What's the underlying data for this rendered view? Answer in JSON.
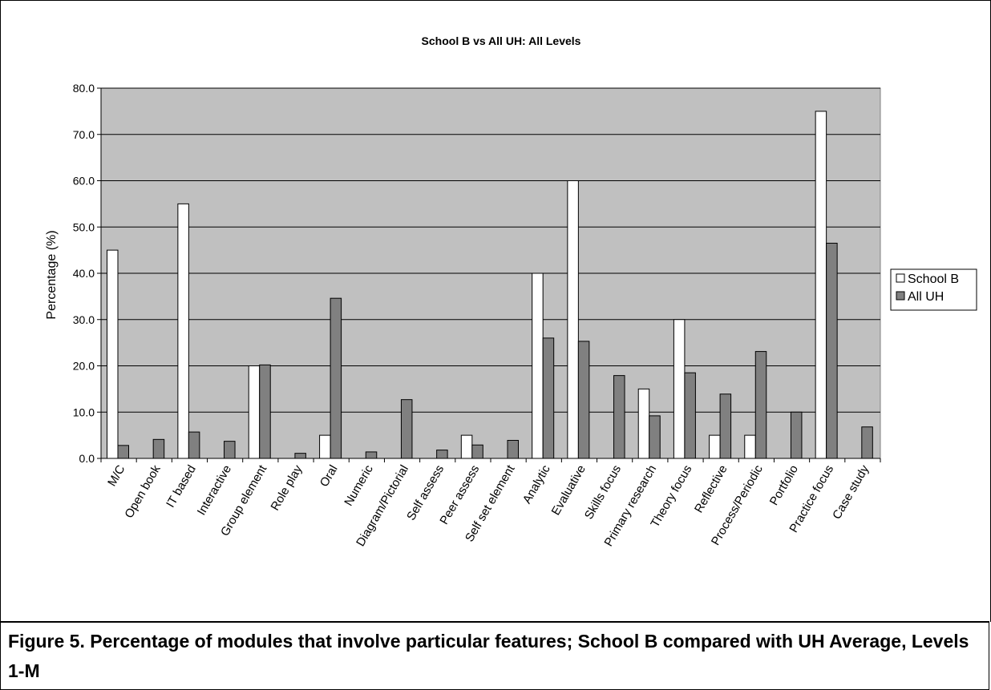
{
  "chart_data": {
    "type": "bar",
    "title": "School B vs All UH: All Levels",
    "xlabel": "",
    "ylabel": "Percentage (%)",
    "ylim": [
      0,
      80
    ],
    "yticks": [
      "0.0",
      "10.0",
      "20.0",
      "30.0",
      "40.0",
      "50.0",
      "60.0",
      "70.0",
      "80.0"
    ],
    "grid": true,
    "legend_position": "right",
    "categories": [
      "M/C",
      "Open book",
      "IT based",
      "Interactive",
      "Group element",
      "Role play",
      "Oral",
      "Numeric",
      "Diagram/Pictorial",
      "Self assess",
      "Peer assess",
      "Self set element",
      "Analytic",
      "Evaluative",
      "Skills focus",
      "Primary research",
      "Theory focus",
      "Reflective",
      "Process/Periodic",
      "Portfolio",
      "Practice focus",
      "Case study"
    ],
    "series": [
      {
        "name": "School B",
        "color": "#ffffff",
        "values": [
          45,
          0,
          55,
          0,
          20,
          0,
          5,
          0,
          0,
          0,
          5,
          0,
          40,
          60,
          0,
          15,
          30,
          5,
          5,
          0,
          75,
          0
        ]
      },
      {
        "name": "All UH",
        "color": "#808080",
        "values": [
          2.8,
          4.1,
          5.7,
          3.7,
          20.2,
          1.1,
          34.6,
          1.4,
          12.7,
          1.8,
          2.9,
          3.9,
          26.0,
          25.3,
          17.9,
          9.2,
          18.5,
          13.9,
          23.1,
          10.0,
          46.5,
          6.8
        ]
      }
    ],
    "plot_background": "#c0c0c0"
  },
  "caption": {
    "text": "Figure 5. Percentage of modules that involve particular features; School B compared with UH Average, Levels 1-M"
  }
}
